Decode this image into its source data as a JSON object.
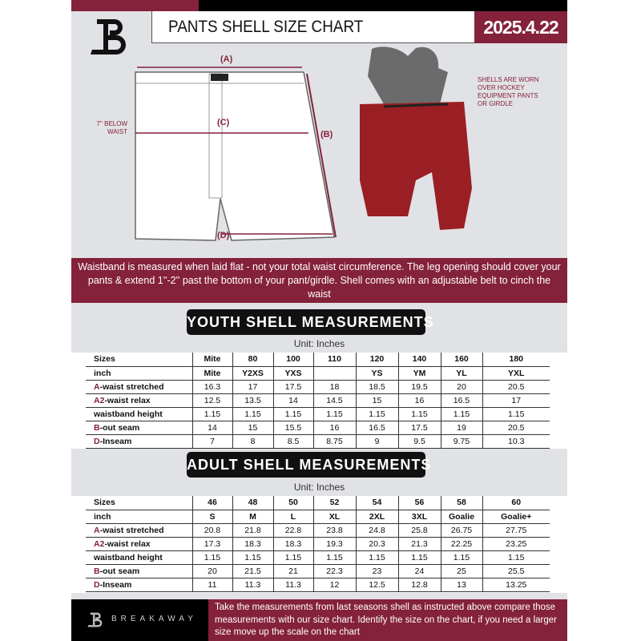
{
  "header": {
    "title": "PANTS SHELL SIZE CHART",
    "date": "2025.4.22"
  },
  "diagram": {
    "label_a": "(A)",
    "label_b": "(B)",
    "label_c": "(C)",
    "label_d": "(D)",
    "below_waist": "7'' BELOW WAIST",
    "shell_note": "SHELLS ARE WORN OVER HOCKEY EQUIPMENT PANTS OR GIRDLE"
  },
  "banner": "Waistband is measured when laid flat - not your total waist circumference. The leg opening should cover your pants & extend 1''-2'' past the bottom of your pant/girdle. Shell comes with an adjustable belt to cinch the waist",
  "colors": {
    "brand": "#84213b",
    "dark": "#111111"
  },
  "youth": {
    "heading": "YOUTH SHELL MEASUREMENTS",
    "unit": "Unit: Inches",
    "rows": [
      {
        "pre": "",
        "label": "Sizes",
        "cells": [
          "Mite",
          "80",
          "100",
          "110",
          "120",
          "140",
          "160",
          "180"
        ],
        "bold": true
      },
      {
        "pre": "",
        "label": "inch",
        "cells": [
          "Mite",
          "Y2XS",
          "YXS",
          "",
          "YS",
          "YM",
          "YL",
          "YXL"
        ],
        "bold": true
      },
      {
        "pre": "A",
        "label": "-waist stretched",
        "cells": [
          "16.3",
          "17",
          "17.5",
          "18",
          "18.5",
          "19.5",
          "20",
          "20.5"
        ]
      },
      {
        "pre": "A2",
        "label": "-waist relax",
        "cells": [
          "12.5",
          "13.5",
          "14",
          "14.5",
          "15",
          "16",
          "16.5",
          "17"
        ]
      },
      {
        "pre": "",
        "label": "waistband height",
        "cells": [
          "1.15",
          "1.15",
          "1.15",
          "1.15",
          "1.15",
          "1.15",
          "1.15",
          "1.15"
        ]
      },
      {
        "pre": "B",
        "label": "-out seam",
        "cells": [
          "14",
          "15",
          "15.5",
          "16",
          "16.5",
          "17.5",
          "19",
          "20.5"
        ]
      },
      {
        "pre": "D",
        "label": "-Inseam",
        "cells": [
          "7",
          "8",
          "8.5",
          "8.75",
          "9",
          "9.5",
          "9.75",
          "10.3"
        ]
      }
    ]
  },
  "adult": {
    "heading": "ADULT SHELL MEASUREMENTS",
    "unit": "Unit: Inches",
    "rows": [
      {
        "pre": "",
        "label": "Sizes",
        "cells": [
          "46",
          "48",
          "50",
          "52",
          "54",
          "56",
          "58",
          "60"
        ],
        "bold": true
      },
      {
        "pre": "",
        "label": "inch",
        "cells": [
          "S",
          "M",
          "L",
          "XL",
          "2XL",
          "3XL",
          "Goalie",
          "Goalie+"
        ],
        "bold": true
      },
      {
        "pre": "A",
        "label": "-waist stretched",
        "cells": [
          "20.8",
          "21.8",
          "22.8",
          "23.8",
          "24.8",
          "25.8",
          "26.75",
          "27.75"
        ]
      },
      {
        "pre": "A2",
        "label": "-waist relax",
        "cells": [
          "17.3",
          "18.3",
          "18.3",
          "19.3",
          "20.3",
          "21.3",
          "22.25",
          "23.25"
        ]
      },
      {
        "pre": "",
        "label": "waistband height",
        "cells": [
          "1.15",
          "1.15",
          "1.15",
          "1.15",
          "1.15",
          "1.15",
          "1.15",
          "1.15"
        ]
      },
      {
        "pre": "B",
        "label": "-out seam",
        "cells": [
          "20",
          "21.5",
          "21",
          "22.3",
          "23",
          "24",
          "25",
          "25.5"
        ]
      },
      {
        "pre": "D",
        "label": "-Inseam",
        "cells": [
          "11",
          "11.3",
          "11.3",
          "12",
          "12.5",
          "12.8",
          "13",
          "13.25"
        ]
      }
    ]
  },
  "footer": {
    "brand": "BREAKAWAY",
    "text": "Take the measurements from last seasons shell as instructed above compare those measurements  with our size chart. Identify the size on the chart, if you need a larger size move up the scale on the chart"
  }
}
